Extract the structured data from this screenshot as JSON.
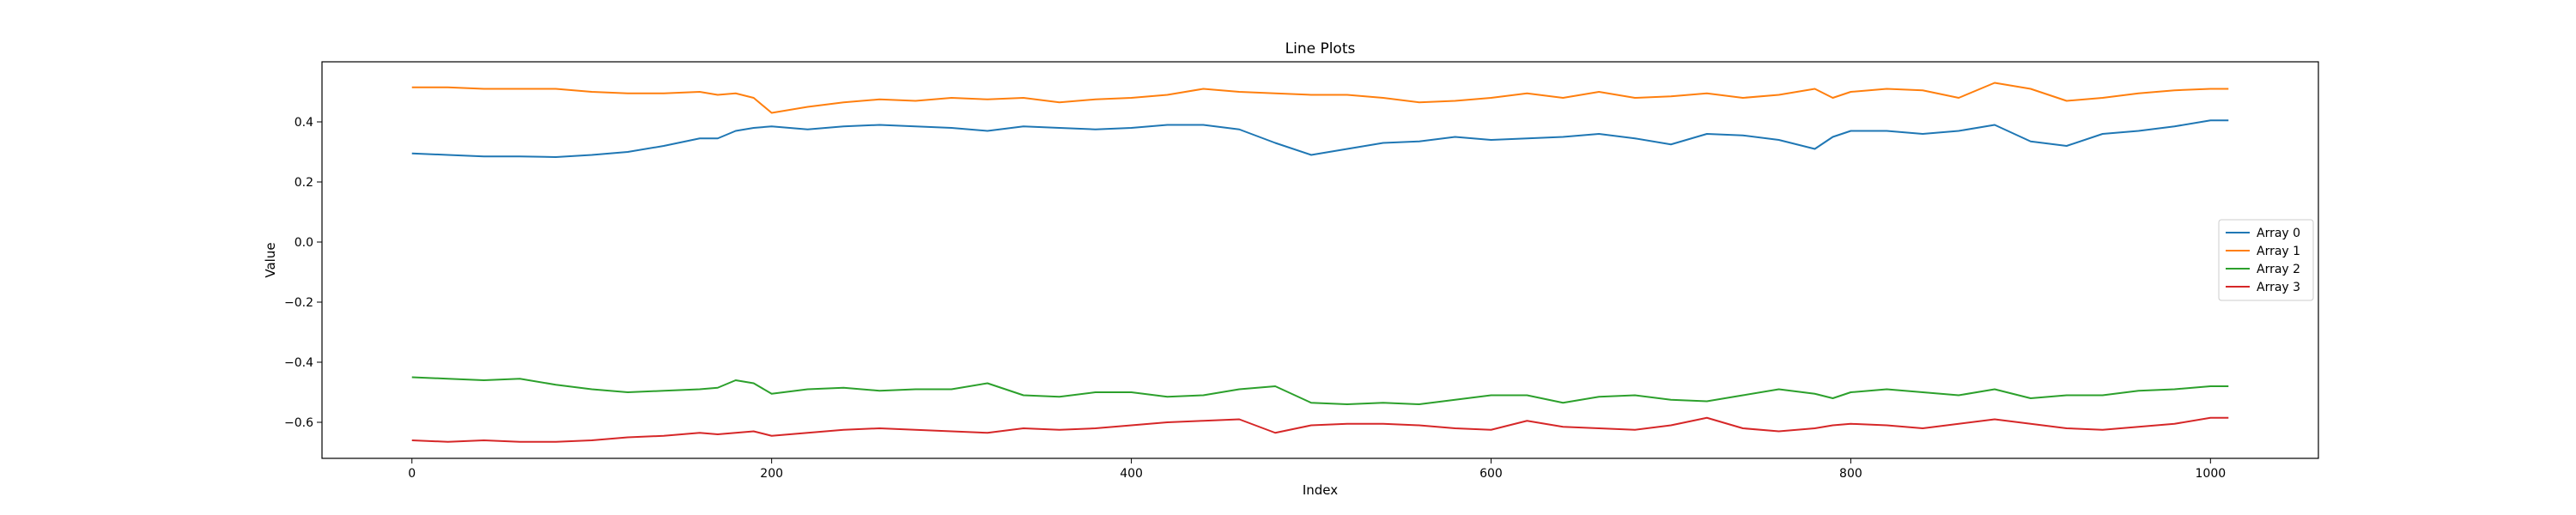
{
  "chart_data": {
    "type": "line",
    "title": "Line Plots",
    "xlabel": "Index",
    "ylabel": "Value",
    "xlim": [
      -50,
      1060
    ],
    "ylim": [
      -0.72,
      0.6
    ],
    "xticks": [
      0,
      200,
      400,
      600,
      800,
      1000
    ],
    "xtick_labels": [
      "0",
      "200",
      "400",
      "600",
      "800",
      "1000"
    ],
    "yticks": [
      -0.6,
      -0.4,
      -0.2,
      0.0,
      0.2,
      0.4
    ],
    "ytick_labels": [
      "−0.6",
      "−0.4",
      "−0.2",
      "0.0",
      "0.2",
      "0.4"
    ],
    "grid": false,
    "legend_position": "center-right",
    "x": [
      0,
      20,
      40,
      60,
      80,
      100,
      120,
      140,
      160,
      170,
      180,
      190,
      200,
      220,
      240,
      260,
      280,
      300,
      320,
      340,
      360,
      380,
      400,
      420,
      440,
      460,
      480,
      500,
      520,
      540,
      560,
      580,
      600,
      620,
      640,
      660,
      680,
      700,
      720,
      740,
      760,
      780,
      790,
      800,
      820,
      840,
      860,
      880,
      900,
      920,
      940,
      960,
      980,
      1000,
      1010
    ],
    "series": [
      {
        "name": "Array 0",
        "color": "#1f77b4",
        "values": [
          0.295,
          0.29,
          0.285,
          0.285,
          0.283,
          0.29,
          0.3,
          0.32,
          0.345,
          0.345,
          0.37,
          0.38,
          0.385,
          0.375,
          0.385,
          0.39,
          0.385,
          0.38,
          0.37,
          0.385,
          0.38,
          0.375,
          0.38,
          0.39,
          0.39,
          0.375,
          0.33,
          0.29,
          0.31,
          0.33,
          0.335,
          0.35,
          0.34,
          0.345,
          0.35,
          0.36,
          0.345,
          0.325,
          0.36,
          0.355,
          0.34,
          0.31,
          0.35,
          0.37,
          0.37,
          0.36,
          0.37,
          0.39,
          0.335,
          0.32,
          0.36,
          0.37,
          0.385,
          0.405,
          0.405
        ]
      },
      {
        "name": "Array 1",
        "color": "#ff7f0e",
        "values": [
          0.515,
          0.515,
          0.51,
          0.51,
          0.51,
          0.5,
          0.495,
          0.495,
          0.5,
          0.49,
          0.495,
          0.48,
          0.43,
          0.45,
          0.465,
          0.475,
          0.47,
          0.48,
          0.475,
          0.48,
          0.465,
          0.475,
          0.48,
          0.49,
          0.51,
          0.5,
          0.495,
          0.49,
          0.49,
          0.48,
          0.465,
          0.47,
          0.48,
          0.495,
          0.48,
          0.5,
          0.48,
          0.485,
          0.495,
          0.48,
          0.49,
          0.51,
          0.48,
          0.5,
          0.51,
          0.505,
          0.48,
          0.53,
          0.51,
          0.47,
          0.48,
          0.495,
          0.505,
          0.51,
          0.51
        ]
      },
      {
        "name": "Array 2",
        "color": "#2ca02c",
        "values": [
          -0.45,
          -0.455,
          -0.46,
          -0.455,
          -0.475,
          -0.49,
          -0.5,
          -0.495,
          -0.49,
          -0.485,
          -0.46,
          -0.47,
          -0.505,
          -0.49,
          -0.485,
          -0.495,
          -0.49,
          -0.49,
          -0.47,
          -0.51,
          -0.515,
          -0.5,
          -0.5,
          -0.515,
          -0.51,
          -0.49,
          -0.48,
          -0.535,
          -0.54,
          -0.535,
          -0.54,
          -0.525,
          -0.51,
          -0.51,
          -0.535,
          -0.515,
          -0.51,
          -0.525,
          -0.53,
          -0.51,
          -0.49,
          -0.505,
          -0.52,
          -0.5,
          -0.49,
          -0.5,
          -0.51,
          -0.49,
          -0.52,
          -0.51,
          -0.51,
          -0.495,
          -0.49,
          -0.48,
          -0.48
        ]
      },
      {
        "name": "Array 3",
        "color": "#d62728",
        "values": [
          -0.66,
          -0.665,
          -0.66,
          -0.665,
          -0.665,
          -0.66,
          -0.65,
          -0.645,
          -0.635,
          -0.64,
          -0.635,
          -0.63,
          -0.645,
          -0.635,
          -0.625,
          -0.62,
          -0.625,
          -0.63,
          -0.635,
          -0.62,
          -0.625,
          -0.62,
          -0.61,
          -0.6,
          -0.595,
          -0.59,
          -0.635,
          -0.61,
          -0.605,
          -0.605,
          -0.61,
          -0.62,
          -0.625,
          -0.595,
          -0.615,
          -0.62,
          -0.625,
          -0.61,
          -0.585,
          -0.62,
          -0.63,
          -0.62,
          -0.61,
          -0.605,
          -0.61,
          -0.62,
          -0.605,
          -0.59,
          -0.605,
          -0.62,
          -0.625,
          -0.615,
          -0.605,
          -0.585,
          -0.585
        ]
      }
    ]
  }
}
